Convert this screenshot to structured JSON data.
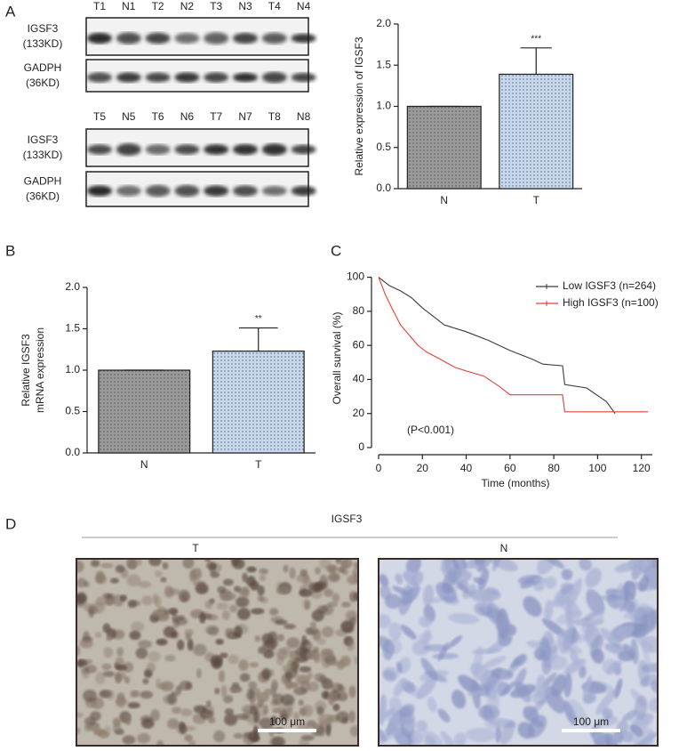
{
  "panels": {
    "a": "A",
    "b": "B",
    "c": "C",
    "d": "D"
  },
  "blots": [
    {
      "lanes": [
        "T1",
        "N1",
        "T2",
        "N2",
        "T3",
        "N3",
        "T4",
        "N4"
      ],
      "rows": [
        {
          "name": "IGSF3",
          "size": "(133KD)"
        },
        {
          "name": "GADPH",
          "size": "(36KD)"
        }
      ]
    },
    {
      "lanes": [
        "T5",
        "N5",
        "T6",
        "N6",
        "T7",
        "N7",
        "T8",
        "N8"
      ],
      "rows": [
        {
          "name": "IGSF3",
          "size": "(133KD)"
        },
        {
          "name": "GADPH",
          "size": "(36KD)"
        }
      ]
    }
  ],
  "chart_data": [
    {
      "type": "bar",
      "ylabel": [
        "Relative expression of IGSF3"
      ],
      "categories": [
        "N",
        "T"
      ],
      "values": [
        1.0,
        1.39
      ],
      "errors": [
        0,
        0.32
      ],
      "colors": [
        "#9a9a9a",
        "#c6d8ee"
      ],
      "significance": "***",
      "ylim": [
        0,
        2.0
      ],
      "yticks": [
        {
          "value": 0,
          "label": "0.0"
        },
        {
          "value": 0.5,
          "label": "0.5"
        },
        {
          "value": 1,
          "label": "1.0"
        },
        {
          "value": 1.5,
          "label": "1.5"
        },
        {
          "value": 2,
          "label": "2.0"
        }
      ]
    },
    {
      "type": "bar",
      "ylabel": [
        "Relative  IGSF3",
        "mRNA expression"
      ],
      "categories": [
        "N",
        "T"
      ],
      "values": [
        1.0,
        1.23
      ],
      "errors": [
        0,
        0.28
      ],
      "colors": [
        "#9a9a9a",
        "#c6d8ee"
      ],
      "significance": "**",
      "ylim": [
        0,
        2.0
      ],
      "yticks": [
        {
          "value": 0,
          "label": "0.0"
        },
        {
          "value": 0.5,
          "label": "0.5"
        },
        {
          "value": 1,
          "label": "1.0"
        },
        {
          "value": 1.5,
          "label": "1.5"
        },
        {
          "value": 2,
          "label": "2.0"
        }
      ]
    },
    {
      "type": "line",
      "xlabel": "Time (months)",
      "ylabel": "Overall survival (%)",
      "annotation": "(P<0.001)",
      "xlim": [
        0,
        125
      ],
      "ylim": [
        0,
        105
      ],
      "xticks": [
        0,
        20,
        40,
        60,
        80,
        100,
        120
      ],
      "yticks": [
        0,
        20,
        40,
        60,
        80,
        100
      ],
      "series": [
        {
          "name": "Low IGSF3 (n=264)",
          "color": "#3a3a3a",
          "x": [
            0,
            5,
            10,
            15,
            20,
            25,
            30,
            40,
            50,
            60,
            70,
            75,
            84,
            85,
            95,
            104,
            108
          ],
          "values": [
            100,
            95,
            92,
            88,
            82,
            77,
            72,
            68,
            63,
            57,
            52,
            49,
            48,
            37,
            35,
            27,
            20
          ]
        },
        {
          "name": "High IGSF3 (n=100)",
          "color": "#e0403a",
          "x": [
            0,
            3,
            6,
            10,
            14,
            18,
            22,
            28,
            35,
            40,
            48,
            55,
            60,
            84,
            85,
            123
          ],
          "values": [
            100,
            90,
            82,
            72,
            66,
            60,
            56,
            52,
            47,
            45,
            42,
            36,
            31,
            31,
            21,
            21
          ]
        }
      ]
    }
  ],
  "ihc": {
    "title": "IGSF3",
    "images": [
      {
        "label": "T",
        "scale": "100 μm"
      },
      {
        "label": "N",
        "scale": "100 μm"
      }
    ]
  }
}
